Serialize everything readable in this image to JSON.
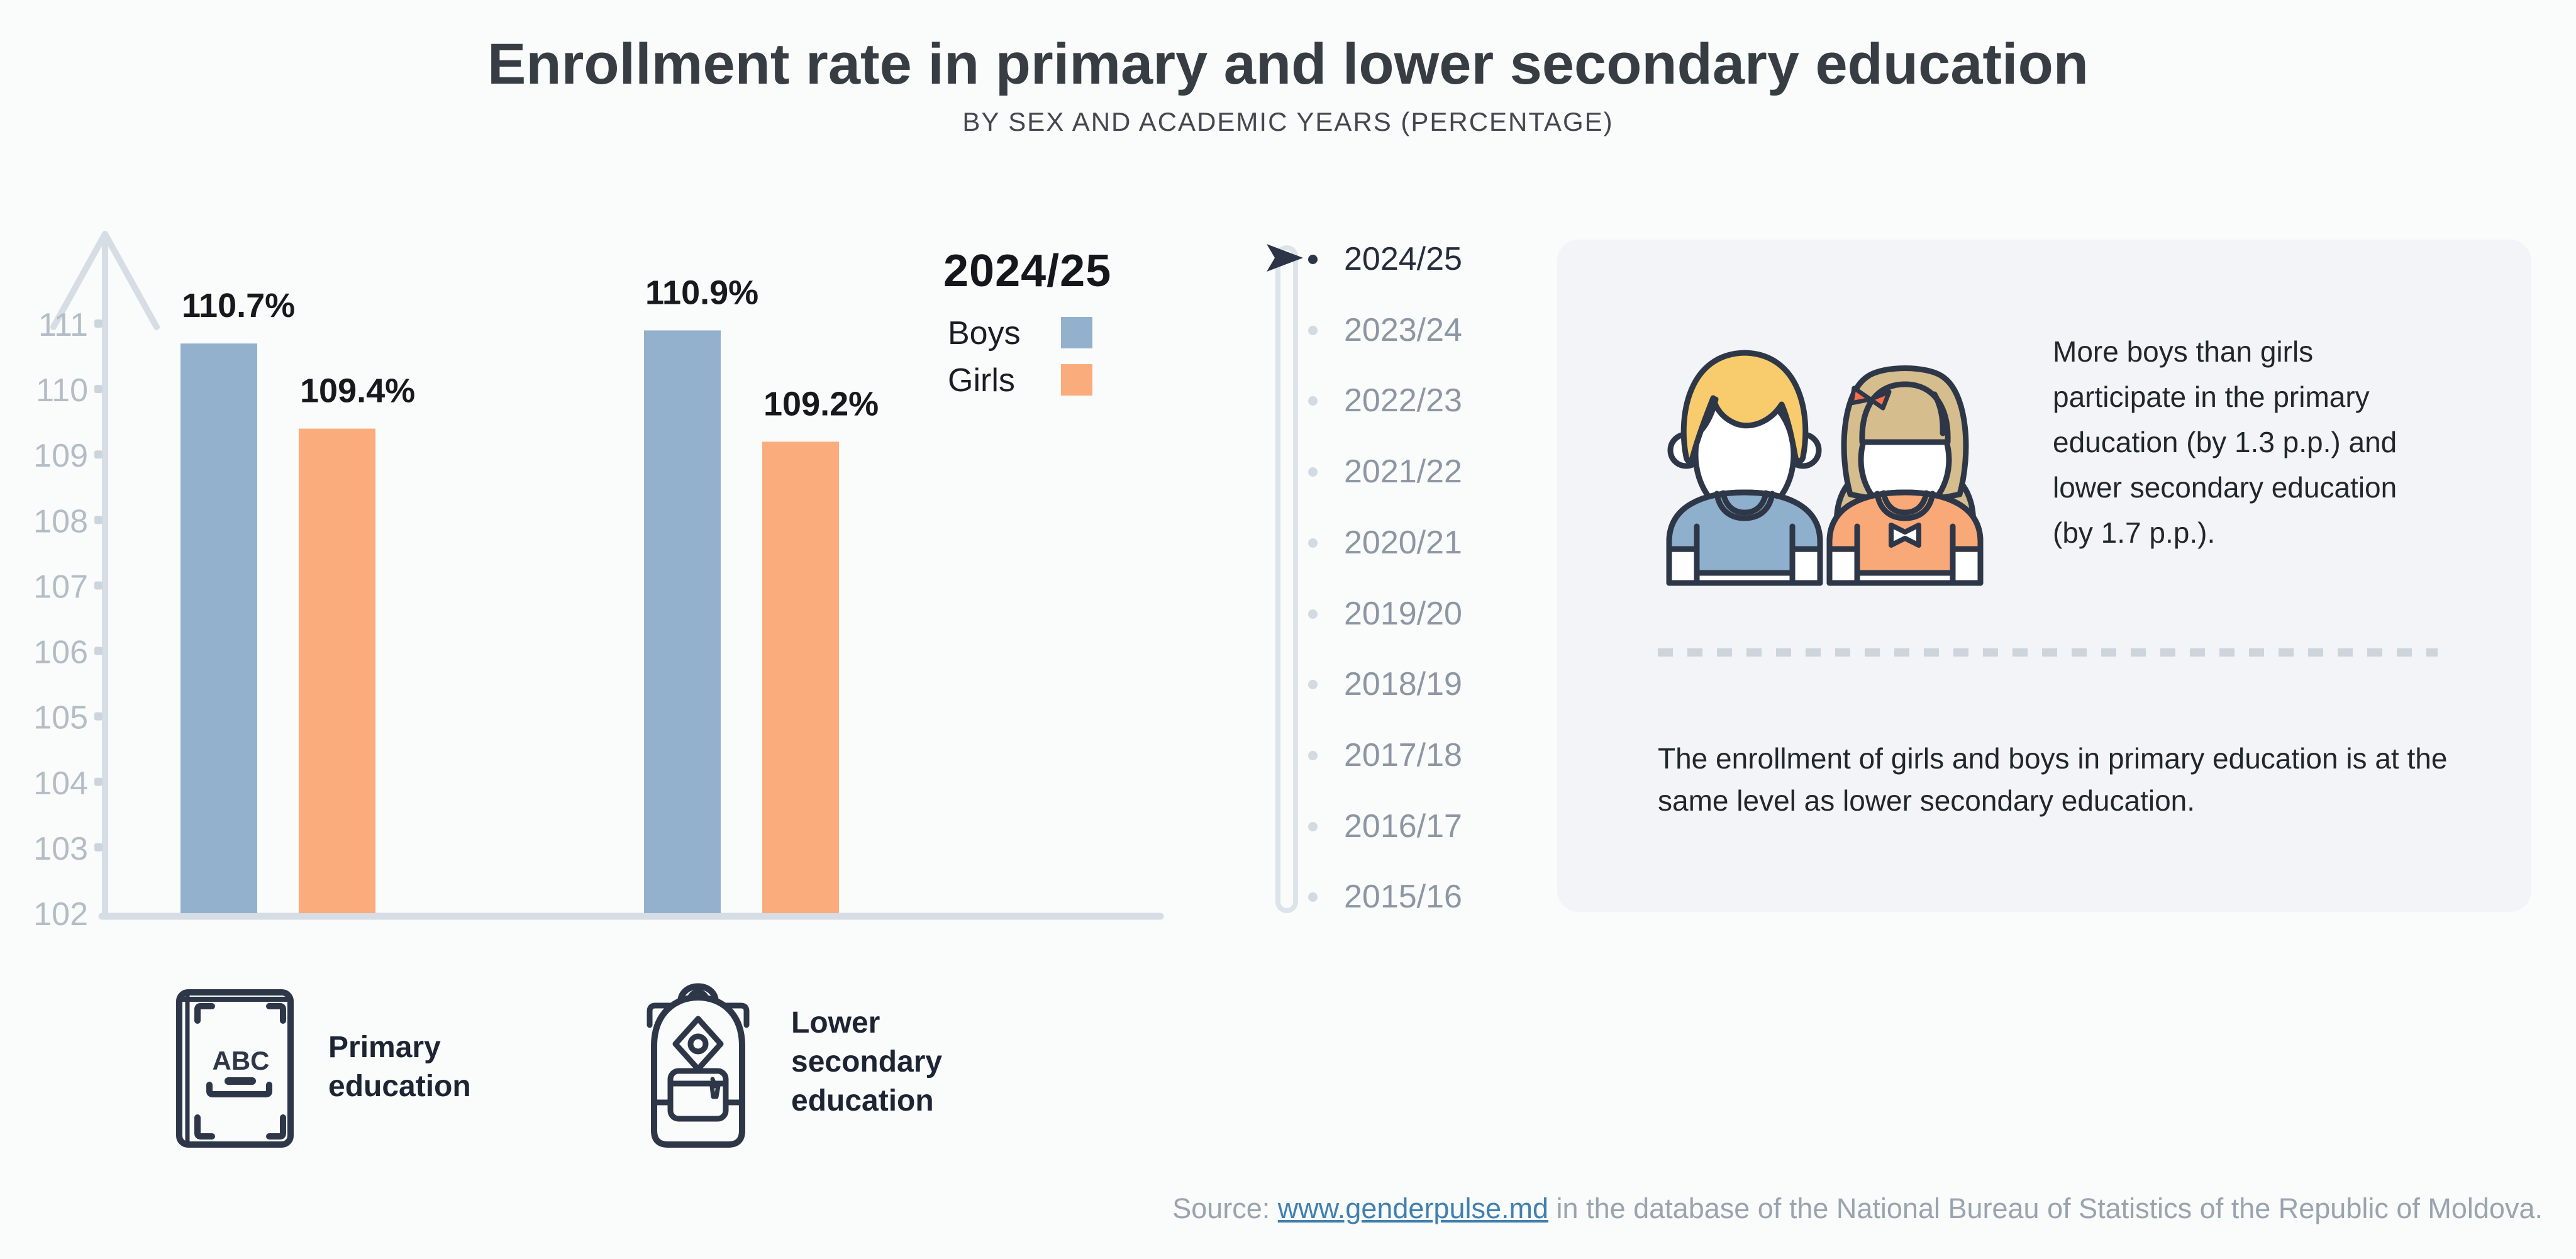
{
  "title": "Enrollment rate in primary and lower secondary education",
  "subtitle": "BY SEX AND ACADEMIC YEARS (PERCENTAGE)",
  "chart_data": {
    "type": "bar",
    "title": "Enrollment rate in primary and lower secondary education",
    "subtitle": "By sex and academic years (percentage)",
    "categories": [
      "Primary education",
      "Lower secondary education"
    ],
    "series": [
      {
        "name": "Boys",
        "color": "#93b1cc",
        "values": [
          110.7,
          110.9
        ]
      },
      {
        "name": "Girls",
        "color": "#fbac7c",
        "values": [
          109.4,
          109.2
        ]
      }
    ],
    "value_suffix": "%",
    "xlabel": "",
    "ylabel": "",
    "ylim": [
      102,
      111
    ],
    "yticks": [
      102,
      103,
      104,
      105,
      106,
      107,
      108,
      109,
      110,
      111
    ],
    "grid": false,
    "legend_title": "2024/25",
    "legend_position": "right-of-plot"
  },
  "timeline": {
    "selected_index": 0,
    "years": [
      "2024/25",
      "2023/24",
      "2022/23",
      "2021/22",
      "2020/21",
      "2019/20",
      "2018/19",
      "2017/18",
      "2016/17",
      "2015/16"
    ]
  },
  "infobox": {
    "highlight": "More boys than girls participate in the primary education (by 1.3 p.p.) and lower secondary education (by 1.7 p.p.).",
    "note": "The enrollment of girls and boys in primary education is at the same level as lower secondary education."
  },
  "category_labels": [
    {
      "icon": "book-abc-icon",
      "label": "Primary education",
      "book_text": "ABC"
    },
    {
      "icon": "backpack-icon",
      "label": "Lower secondary education"
    }
  ],
  "source": {
    "prefix": "Source: ",
    "link_text": "www.genderpulse.md",
    "suffix": " in the database of the National Bureau of Statistics of the Republic of Moldova."
  },
  "colors": {
    "boys_bar": "#93b1cc",
    "girls_bar": "#fbac7c",
    "outline_navy": "#2e3748",
    "axis_gray": "#d6dde4",
    "infobox_bg": "#f2f4f7",
    "link_blue": "#4080b0",
    "boy_hair": "#f8cc6c",
    "girl_hair": "#d6bd8e",
    "bow_red": "#f96e4f"
  }
}
